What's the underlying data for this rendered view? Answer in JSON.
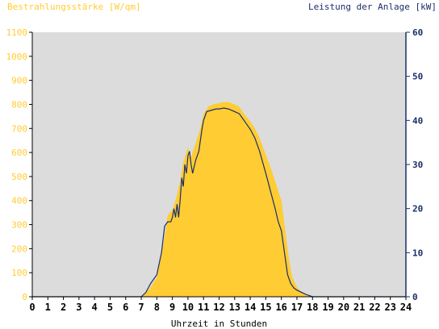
{
  "chart_data": {
    "type": "area",
    "title": "",
    "xlabel": "Uhrzeit in Stunden",
    "ylabel_left": "Bestrahlungsstärke [W/qm]",
    "ylabel_right": "Leistung der Anlage [kW]",
    "xlim": [
      0,
      24
    ],
    "ylim_left": [
      0,
      1100
    ],
    "ylim_right": [
      0,
      60
    ],
    "x_ticks": [
      "0",
      "1",
      "2",
      "3",
      "4",
      "5",
      "6",
      "7",
      "8",
      "9",
      "10",
      "11",
      "12",
      "13",
      "14",
      "15",
      "16",
      "17",
      "18",
      "19",
      "20",
      "21",
      "22",
      "23",
      "24"
    ],
    "y_left_ticks": [
      "0",
      "100",
      "200",
      "300",
      "400",
      "500",
      "600",
      "700",
      "800",
      "900",
      "1000",
      "1100"
    ],
    "y_right_ticks": [
      "0",
      "10",
      "20",
      "30",
      "40",
      "50",
      "60"
    ],
    "grid": false,
    "colors": {
      "irradiance_fill": "#ffcc33",
      "power_line": "#1a2e6b",
      "plot_background": "#dcdcdc",
      "left_axis_text": "#ffcc33",
      "right_axis_text": "#1a2e6b",
      "x_axis_text": "#000000"
    },
    "series": [
      {
        "axis": "left",
        "kind": "area",
        "x": [
          0,
          7.0,
          7.5,
          8.0,
          8.3,
          8.5,
          8.7,
          9.0,
          9.2,
          9.5,
          9.7,
          10.0,
          10.2,
          10.5,
          10.8,
          11.0,
          11.3,
          11.6,
          12.0,
          12.3,
          12.6,
          13.0,
          13.3,
          13.6,
          14.0,
          14.3,
          14.6,
          15.0,
          15.3,
          15.6,
          16.0,
          16.2,
          16.5,
          16.7,
          17.0,
          17.3,
          17.6,
          18.0,
          24
        ],
        "values": [
          0,
          0,
          30,
          80,
          180,
          250,
          340,
          360,
          400,
          480,
          560,
          620,
          580,
          640,
          700,
          760,
          790,
          800,
          805,
          810,
          810,
          800,
          790,
          760,
          730,
          700,
          660,
          590,
          540,
          480,
          400,
          300,
          150,
          80,
          40,
          20,
          5,
          0,
          0
        ]
      },
      {
        "axis": "right",
        "kind": "line",
        "x": [
          0,
          7.0,
          7.3,
          7.6,
          8.0,
          8.3,
          8.5,
          8.7,
          8.9,
          9.0,
          9.1,
          9.2,
          9.3,
          9.4,
          9.5,
          9.6,
          9.7,
          9.8,
          9.9,
          10.0,
          10.1,
          10.2,
          10.3,
          10.5,
          10.7,
          10.9,
          11.0,
          11.2,
          11.5,
          11.8,
          12.0,
          12.3,
          12.6,
          13.0,
          13.3,
          13.6,
          14.0,
          14.3,
          14.6,
          15.0,
          15.3,
          15.6,
          15.8,
          16.0,
          16.2,
          16.4,
          16.6,
          16.8,
          17.0,
          17.3,
          17.6,
          18.0,
          24
        ],
        "values": [
          0,
          0,
          1,
          3,
          5,
          10,
          16,
          17,
          17,
          18,
          20,
          18,
          21,
          18,
          22,
          27,
          25,
          30,
          28,
          32,
          33,
          30,
          28,
          31,
          33,
          38,
          40,
          42,
          42.3,
          42.6,
          42.6,
          42.8,
          42.6,
          42,
          41.5,
          40,
          38,
          36,
          33,
          28,
          24,
          20,
          17,
          15,
          10,
          5,
          3,
          2,
          1.5,
          1,
          0.5,
          0,
          0
        ]
      }
    ]
  }
}
